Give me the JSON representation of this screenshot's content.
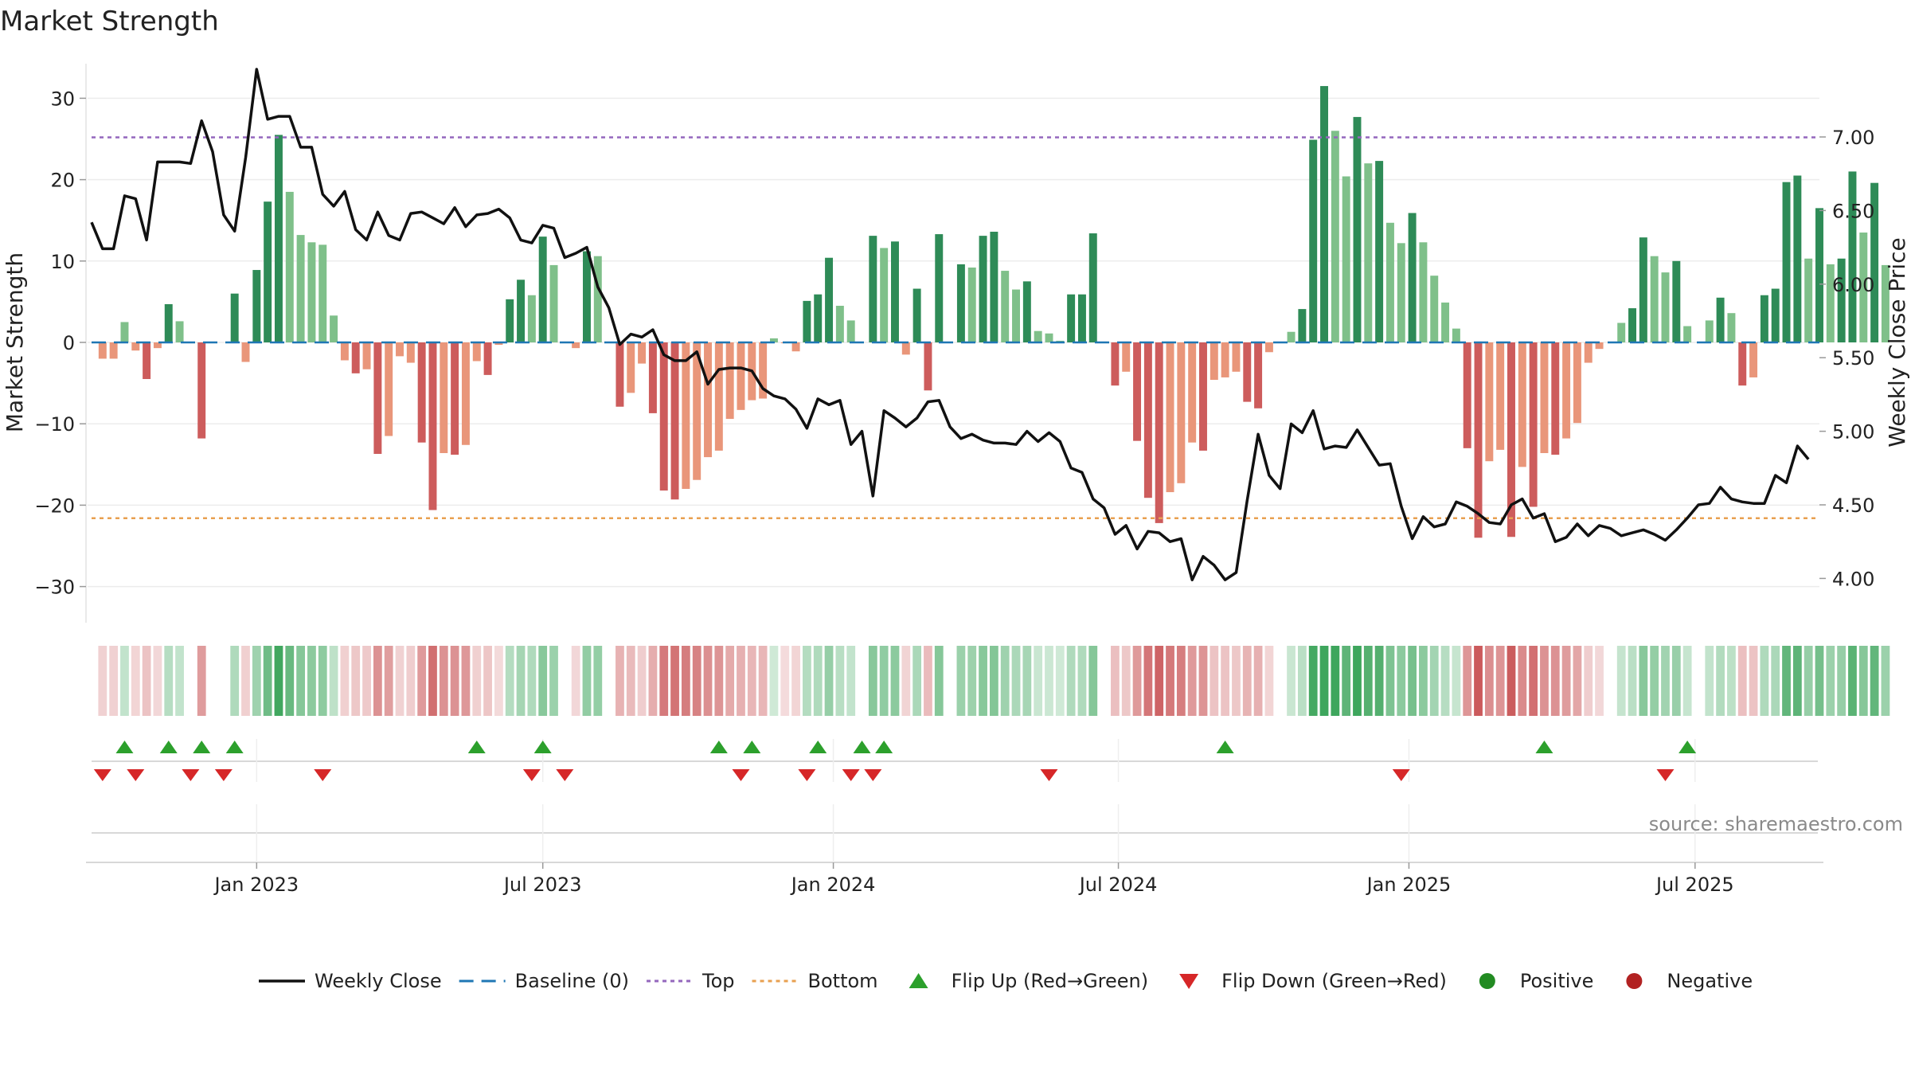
{
  "chart_data": {
    "type": "bar",
    "title": "Market Strength",
    "ylabel": "Market Strength",
    "y2label": "Weekly Close Price",
    "ylim": [
      -34,
      34
    ],
    "y2lim": [
      3.85,
      7.5
    ],
    "yticks": [
      -30,
      -20,
      -10,
      0,
      10,
      20,
      30
    ],
    "y2ticks": [
      4.0,
      4.5,
      5.0,
      5.5,
      6.0,
      6.5,
      7.0
    ],
    "y2tick_labels": [
      "4.00",
      "4.50",
      "5.00",
      "5.50",
      "6.00",
      "6.50",
      "7.00"
    ],
    "top_threshold": 25.2,
    "bottom_threshold": -21.6,
    "x_start_week": 0,
    "x_end_week": 157,
    "x_ticks": [
      {
        "label": "Jan 2023",
        "week": 15
      },
      {
        "label": "Jul 2023",
        "week": 41
      },
      {
        "label": "Jan 2024",
        "week": 67.4
      },
      {
        "label": "Jul 2024",
        "week": 93.3
      },
      {
        "label": "Jan 2025",
        "week": 119.7
      },
      {
        "label": "Jul 2025",
        "week": 145.7
      }
    ],
    "strength": [
      0,
      -2,
      -2,
      2.5,
      -1,
      -4.5,
      -0.7,
      4.7,
      2.6,
      0,
      -11.8,
      0,
      0,
      6,
      -2.4,
      8.9,
      17.3,
      25.5,
      18.5,
      13.2,
      12.3,
      12,
      3.3,
      -2.2,
      -3.8,
      -3.3,
      -13.7,
      -11.5,
      -1.7,
      -2.5,
      -12.3,
      -20.6,
      -13.6,
      -13.8,
      -12.6,
      -2.3,
      -4,
      -0.3,
      5.3,
      7.7,
      5.8,
      13,
      9.5,
      0,
      -0.7,
      11.2,
      10.6,
      0,
      -7.9,
      -6.2,
      -2.6,
      -8.7,
      -18.2,
      -19.3,
      -18,
      -16.9,
      -14.1,
      -13.3,
      -9.4,
      -8.3,
      -7.1,
      -6.9,
      0.5,
      -0.1,
      -1.1,
      5.1,
      5.9,
      10.4,
      4.5,
      2.7,
      0,
      13.1,
      11.6,
      12.4,
      -1.5,
      6.6,
      -5.9,
      13.3,
      0,
      9.6,
      9.2,
      13.1,
      13.6,
      8.8,
      6.5,
      7.5,
      1.4,
      1.1,
      0.2,
      5.9,
      5.9,
      13.4,
      0,
      -5.3,
      -3.6,
      -12.1,
      -19.1,
      -22.2,
      -18.4,
      -17.3,
      -12.3,
      -13.3,
      -4.6,
      -4.3,
      -3.6,
      -7.3,
      -8.1,
      -1.2,
      0,
      1.3,
      4.1,
      24.9,
      31.5,
      26,
      20.4,
      27.7,
      22,
      22.3,
      14.7,
      12.2,
      15.9,
      12.3,
      8.2,
      4.9,
      1.7,
      -13,
      -24,
      -14.6,
      -13.2,
      -23.9,
      -15.3,
      -20.2,
      -13.6,
      -13.8,
      -11.8,
      -9.9,
      -2.5,
      -0.8,
      0,
      2.4,
      4.2,
      12.9,
      10.6,
      8.6,
      10,
      2,
      0,
      2.7,
      5.5,
      3.6,
      -5.3,
      -4.3,
      5.8,
      6.6,
      19.7,
      20.5,
      10.3,
      16.5,
      9.6,
      10.3,
      21,
      13.5,
      19.6,
      9.5
    ],
    "price": [
      6.42,
      6.24,
      6.24,
      6.6,
      6.58,
      6.3,
      6.83,
      6.83,
      6.83,
      6.82,
      7.11,
      6.9,
      6.47,
      6.36,
      6.86,
      7.46,
      7.12,
      7.14,
      7.14,
      6.93,
      6.93,
      6.61,
      6.53,
      6.63,
      6.37,
      6.3,
      6.49,
      6.33,
      6.3,
      6.48,
      6.49,
      6.45,
      6.41,
      6.52,
      6.39,
      6.47,
      6.48,
      6.51,
      6.45,
      6.3,
      6.28,
      6.4,
      6.38,
      6.18,
      6.21,
      6.25,
      5.98,
      5.84,
      5.59,
      5.66,
      5.64,
      5.69,
      5.52,
      5.48,
      5.48,
      5.54,
      5.32,
      5.42,
      5.43,
      5.43,
      5.41,
      5.29,
      5.24,
      5.22,
      5.15,
      5.02,
      5.22,
      5.18,
      5.21,
      4.91,
      5,
      4.56,
      5.14,
      5.09,
      5.03,
      5.09,
      5.2,
      5.21,
      5.03,
      4.95,
      4.98,
      4.94,
      4.92,
      4.92,
      4.91,
      5,
      4.93,
      4.99,
      4.93,
      4.75,
      4.72,
      4.54,
      4.48,
      4.3,
      4.36,
      4.2,
      4.32,
      4.31,
      4.25,
      4.27,
      3.99,
      4.15,
      4.09,
      3.99,
      4.04,
      4.53,
      4.98,
      4.7,
      4.61,
      5.05,
      4.99,
      5.14,
      4.88,
      4.9,
      4.89,
      5.01,
      4.89,
      4.77,
      4.78,
      4.49,
      4.27,
      4.42,
      4.35,
      4.37,
      4.52,
      4.49,
      4.44,
      4.38,
      4.37,
      4.5,
      4.54,
      4.41,
      4.44,
      4.25,
      4.28,
      4.37,
      4.29,
      4.36,
      4.34,
      4.29,
      4.31,
      4.33,
      4.3,
      4.26,
      4.33,
      4.41,
      4.5,
      4.51,
      4.62,
      4.54,
      4.52,
      4.51,
      4.51,
      4.7,
      4.65,
      4.9,
      4.81
    ],
    "heat_strip": "dot-per-week",
    "flip_up_weeks": [
      3,
      7,
      10,
      13,
      35,
      41,
      57,
      60,
      66,
      70,
      72,
      103,
      132,
      145
    ],
    "flip_down_weeks": [
      1,
      4,
      9,
      12,
      21,
      40,
      43,
      59,
      65,
      69,
      71,
      87,
      119,
      143
    ],
    "colors": {
      "strong_green": "#2e8b57",
      "light_green": "#7fc08a",
      "strong_red": "#cd5c5c",
      "light_red": "#e9967a",
      "price_line": "#111111",
      "baseline": "#1f77b4",
      "top": "#9467bd",
      "bottom": "#e8a050",
      "flip_up": "#2ca02c",
      "flip_down": "#d62728",
      "positive": "#228b22",
      "negative": "#b22222"
    },
    "legend": [
      {
        "key": "close",
        "label": "Weekly Close"
      },
      {
        "key": "baseline",
        "label": "Baseline (0)"
      },
      {
        "key": "top",
        "label": "Top"
      },
      {
        "key": "bottom",
        "label": "Bottom"
      },
      {
        "key": "flip_up",
        "label": "Flip Up (Red→Green)"
      },
      {
        "key": "flip_down",
        "label": "Flip Down (Green→Red)"
      },
      {
        "key": "positive",
        "label": "Positive"
      },
      {
        "key": "negative",
        "label": "Negative"
      }
    ],
    "source": "source: sharemaestro.com"
  }
}
